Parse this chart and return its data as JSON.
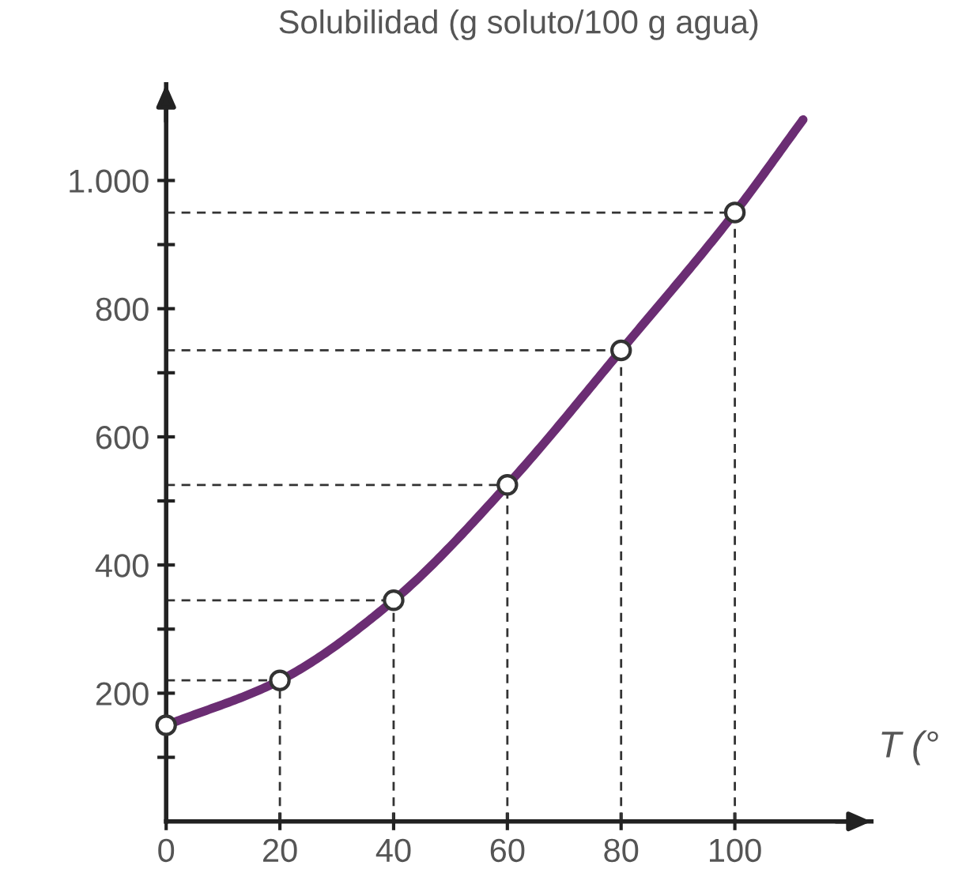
{
  "chart_data": {
    "type": "line",
    "ylabel": "Solubilidad (g soluto/100 g agua)",
    "xlabel": "T (°",
    "xlim": [
      0,
      124
    ],
    "ylim": [
      0,
      1150
    ],
    "xticks": [
      0,
      20,
      40,
      60,
      80,
      100
    ],
    "yticks": [
      {
        "value": 100,
        "label": null
      },
      {
        "value": 200,
        "label": "200"
      },
      {
        "value": 300,
        "label": null
      },
      {
        "value": 400,
        "label": "400"
      },
      {
        "value": 500,
        "label": null
      },
      {
        "value": 600,
        "label": "600"
      },
      {
        "value": 700,
        "label": null
      },
      {
        "value": 800,
        "label": "800"
      },
      {
        "value": 900,
        "label": null
      },
      {
        "value": 1000,
        "label": "1.000"
      }
    ],
    "grid": false,
    "legend": false,
    "series": [
      {
        "color": "#6b2d73",
        "x": [
          0,
          20,
          40,
          60,
          80,
          100,
          112
        ],
        "values": [
          150,
          220,
          345,
          525,
          735,
          950,
          1095
        ],
        "marker": "none",
        "line_style": "solid"
      },
      {
        "type": "scatter",
        "color": "#333333",
        "x": [
          0,
          20,
          40,
          60,
          80,
          100
        ],
        "values": [
          150,
          220,
          345,
          525,
          735,
          950
        ],
        "marker": "circle"
      }
    ],
    "ref_lines": [
      {
        "axis": "x",
        "value": 20,
        "color": "#333333",
        "line_style": "dashed"
      },
      {
        "axis": "x",
        "value": 40,
        "color": "#333333",
        "line_style": "dashed"
      },
      {
        "axis": "x",
        "value": 60,
        "color": "#333333",
        "line_style": "dashed"
      },
      {
        "axis": "x",
        "value": 80,
        "color": "#333333",
        "line_style": "dashed"
      },
      {
        "axis": "x",
        "value": 100,
        "color": "#333333",
        "line_style": "dashed"
      },
      {
        "axis": "y",
        "value": 220,
        "color": "#333333",
        "line_style": "dashed"
      },
      {
        "axis": "y",
        "value": 345,
        "color": "#333333",
        "line_style": "dashed"
      },
      {
        "axis": "y",
        "value": 525,
        "color": "#333333",
        "line_style": "dashed"
      },
      {
        "axis": "y",
        "value": 735,
        "color": "#333333",
        "line_style": "dashed"
      },
      {
        "axis": "y",
        "value": 950,
        "color": "#333333",
        "line_style": "dashed"
      }
    ]
  }
}
